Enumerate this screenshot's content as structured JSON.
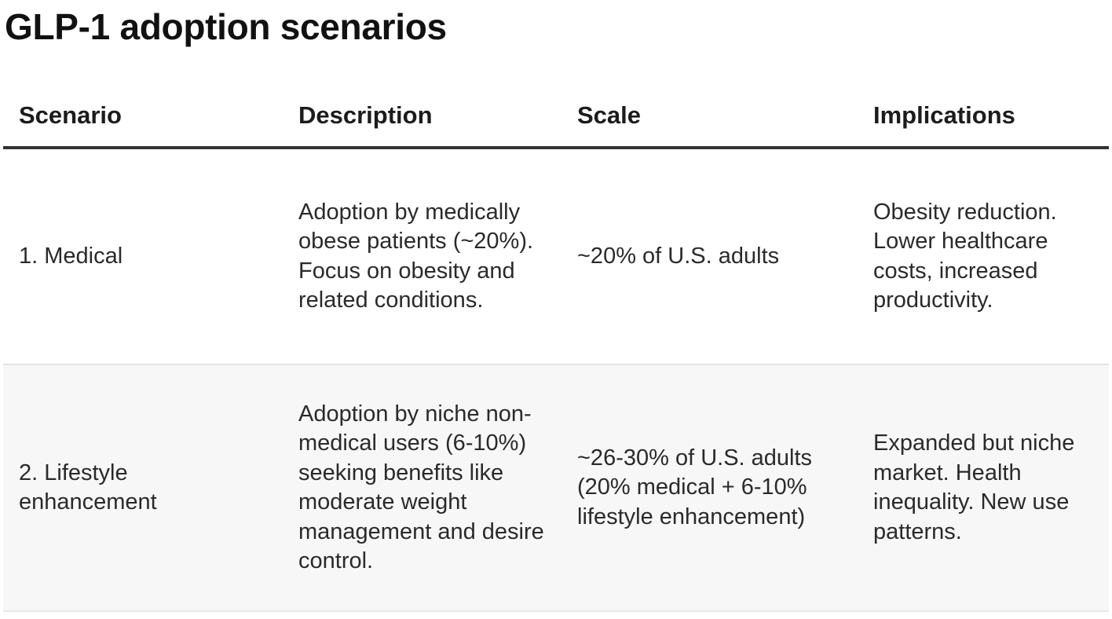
{
  "title": "GLP-1 adoption scenarios",
  "table": {
    "headers": [
      "Scenario",
      "Description",
      "Scale",
      "Implications"
    ],
    "rows": [
      {
        "scenario": "1. Medical",
        "description": "Adoption by medically obese patients (~20%). Focus on obesity and related conditions.",
        "scale": "~20% of U.S. adults",
        "implications": "Obesity reduction. Lower healthcare costs, increased productivity."
      },
      {
        "scenario": "2. Lifestyle enhancement",
        "description": "Adoption by niche non-medical users (6-10%) seeking benefits like moderate weight management and desire control.",
        "scale": "~26-30% of U.S. adults (20% medical + 6-10% lifestyle enhancement)",
        "implications": "Expanded but niche market. Health inequality. New use patterns."
      }
    ]
  }
}
